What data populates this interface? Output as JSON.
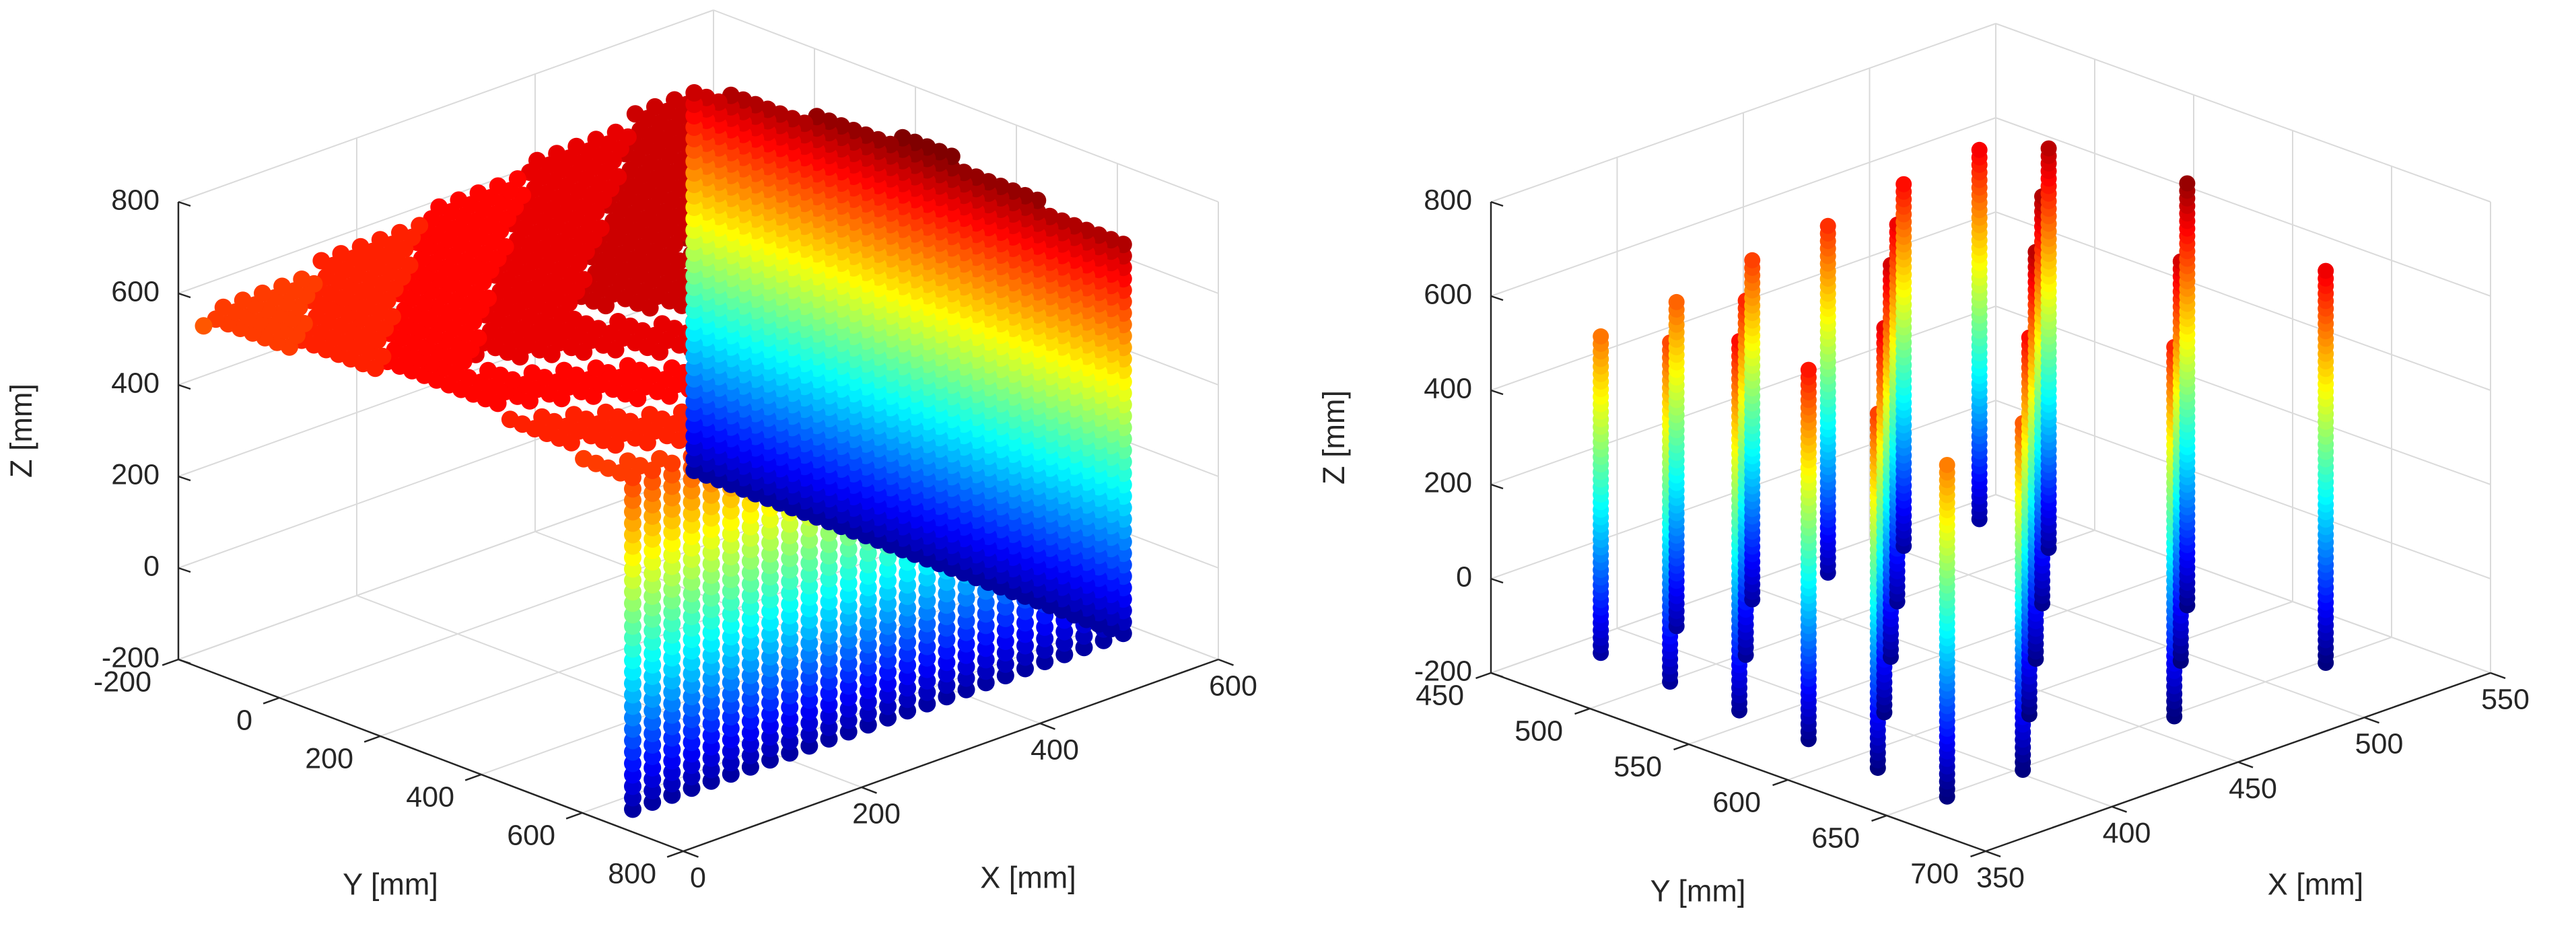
{
  "chart_data": [
    {
      "type": "scatter3d",
      "description_of_points": "dense block of points colored by Z using a jet colormap",
      "colormap": "jet",
      "x_range": [
        0,
        600
      ],
      "y_range": [
        -200,
        800
      ],
      "z_range": [
        -200,
        800
      ],
      "x_ticks": [
        "0",
        "200",
        "400",
        "600"
      ],
      "y_ticks": [
        "-200",
        "0",
        "200",
        "400",
        "600",
        "800"
      ],
      "z_ticks": [
        "-200",
        "0",
        "200",
        "400",
        "600",
        "800"
      ],
      "xlabel": "X [mm]",
      "ylabel": "Y [mm]",
      "zlabel": "Z [mm]",
      "points": {
        "x_start": 0,
        "x_end": 550,
        "x_count": 26,
        "y_start": -150,
        "y_end": 700,
        "y_count": 36,
        "z_min": -150,
        "z_top_min": 500,
        "z_top_max": 760
      }
    },
    {
      "type": "scatter3d",
      "description_of_points": "vertical columns of points colored by Z using a jet colormap",
      "colormap": "jet",
      "x_range": [
        350,
        550
      ],
      "y_range": [
        450,
        700
      ],
      "z_range": [
        -200,
        800
      ],
      "x_ticks": [
        "350",
        "400",
        "450",
        "500",
        "550"
      ],
      "y_ticks": [
        "450",
        "500",
        "550",
        "600",
        "650",
        "700"
      ],
      "z_ticks": [
        "-200",
        "0",
        "200",
        "400",
        "600",
        "800"
      ],
      "xlabel": "X [mm]",
      "ylabel": "Y [mm]",
      "zlabel": "Z [mm]",
      "columns": {
        "x_values": [
          370,
          400,
          430,
          460,
          490,
          520
        ],
        "y_values": [
          480,
          515,
          550,
          585,
          620,
          655
        ],
        "z_min": -150,
        "z_top_min": 500,
        "z_top_max": 760
      }
    }
  ]
}
